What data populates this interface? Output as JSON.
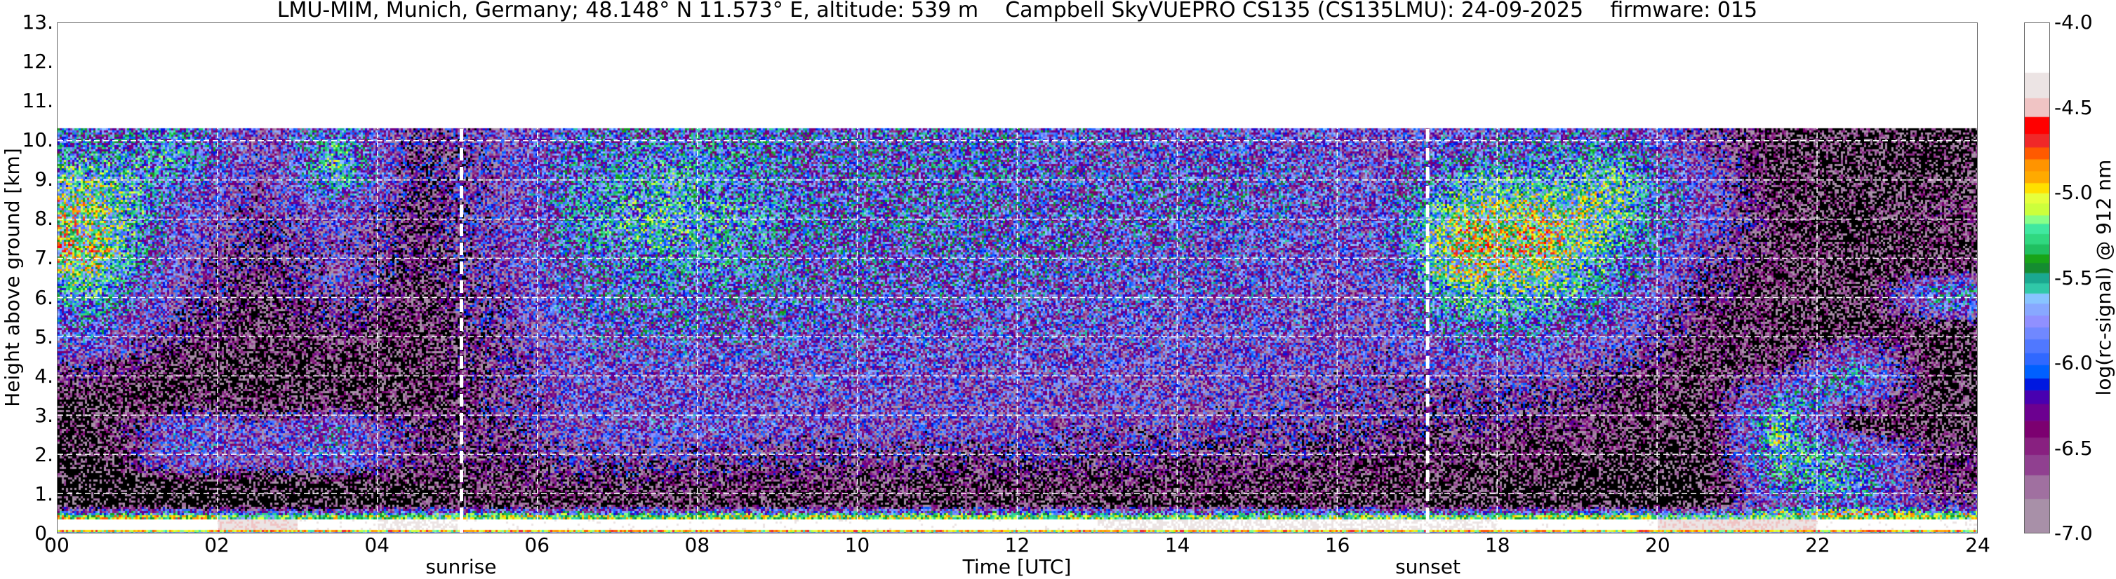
{
  "chart_data": {
    "type": "heatmap",
    "title": "LMU-MIM, Munich, Germany; 48.148° N 11.573° E, altitude: 539 m    Campbell SkyVUEPRO CS135 (CS135LMU): 24-09-2025    firmware: 015",
    "xlabel": "Time [UTC]",
    "ylabel": "Height above ground [km]",
    "xlim": [
      0,
      24
    ],
    "ylim": [
      0,
      13
    ],
    "xticks": [
      "00",
      "02",
      "04",
      "06",
      "08",
      "10",
      "12",
      "14",
      "16",
      "18",
      "20",
      "22",
      "24"
    ],
    "yticks": [
      "0.",
      "1.",
      "2.",
      "3.",
      "4.",
      "5.",
      "6.",
      "7.",
      "8.",
      "9.",
      "10.",
      "11.",
      "12.",
      "13."
    ],
    "grid": true,
    "data_top_km": 10.3,
    "annotations": [
      {
        "label": "sunrise",
        "time_h": 5.05
      },
      {
        "label": "sunset",
        "time_h": 17.13
      }
    ],
    "colorbar": {
      "label": "log(rc-signal) @ 912 nm",
      "ticks": [
        "-4.0",
        "-4.5",
        "-5.0",
        "-5.5",
        "-6.0",
        "-6.5",
        "-7.0"
      ],
      "range": [
        -7.0,
        -4.0
      ],
      "boundaries": [
        -7.0,
        -6.8,
        -6.66,
        -6.54,
        -6.44,
        -6.34,
        -6.24,
        -6.16,
        -6.09,
        -6.01,
        -5.94,
        -5.86,
        -5.79,
        -5.72,
        -5.65,
        -5.59,
        -5.53,
        -5.47,
        -5.41,
        -5.36,
        -5.3,
        -5.24,
        -5.18,
        -5.13,
        -5.06,
        -5.0,
        -4.94,
        -4.87,
        -4.8,
        -4.73,
        -4.65,
        -4.55,
        -4.44,
        -4.29,
        -4.0
      ],
      "colors": [
        "#a890a8",
        "#a070a0",
        "#904090",
        "#882080",
        "#7c0070",
        "#6c0090",
        "#4800b0",
        "#0018e0",
        "#0060ff",
        "#3068ff",
        "#5078ff",
        "#7088ff",
        "#9090ff",
        "#88a8ff",
        "#88c4ff",
        "#30c8a8",
        "#1aa890",
        "#148c30",
        "#18a418",
        "#20c060",
        "#30d880",
        "#40e8a0",
        "#88ff88",
        "#ccff3c",
        "#e6ff3c",
        "#ffe000",
        "#ffaa00",
        "#ff9400",
        "#ff5a00",
        "#f02828",
        "#ff0000",
        "#f0c4c4",
        "#ece4e4",
        "#ffffff"
      ],
      "below_color": "#000000"
    },
    "time_bins_h": [
      0,
      1,
      2,
      3,
      4,
      5,
      6,
      7,
      8,
      9,
      10,
      11,
      12,
      13,
      14,
      15,
      16,
      17,
      18,
      19,
      20,
      21,
      22,
      23
    ],
    "height_bins_km": [
      0,
      0.5,
      1,
      1.5,
      2,
      2.5,
      3,
      3.5,
      4,
      4.5,
      5,
      5.5,
      6,
      6.5,
      7,
      7.5,
      8,
      8.5,
      9,
      9.5,
      10
    ],
    "values_log_signal": [
      [
        -4.1,
        -4.1,
        -4.4,
        -4.2,
        -4.3,
        -4.2,
        -4.2,
        -4.2,
        -4.2,
        -4.2,
        -4.2,
        -4.2,
        -4.2,
        -4.3,
        -4.3,
        -4.3,
        -4.3,
        -4.3,
        -4.2,
        -4.2,
        -4.4,
        -4.4,
        -4.2,
        -4.2
      ],
      [
        -7.3,
        -7.3,
        -7.3,
        -7.3,
        -7.2,
        -7.1,
        -7.1,
        -7.1,
        -7.1,
        -7.1,
        -7.1,
        -7.1,
        -7.1,
        -7.1,
        -7.1,
        -7.1,
        -7.1,
        -7.2,
        -7.2,
        -7.2,
        -7.3,
        -6.2,
        -6.0,
        -6.6
      ],
      [
        -7.3,
        -7.2,
        -7.2,
        -7.2,
        -7.0,
        -6.9,
        -6.8,
        -6.8,
        -6.8,
        -6.9,
        -6.9,
        -6.9,
        -6.9,
        -6.9,
        -6.9,
        -6.9,
        -7.0,
        -7.1,
        -7.1,
        -7.2,
        -7.3,
        -5.8,
        -5.6,
        -6.8
      ],
      [
        -7.2,
        -6.2,
        -6.4,
        -6.1,
        -6.8,
        -6.8,
        -6.6,
        -6.6,
        -6.6,
        -6.7,
        -6.7,
        -6.7,
        -6.7,
        -6.7,
        -6.8,
        -6.8,
        -6.9,
        -6.9,
        -7.0,
        -7.1,
        -7.2,
        -5.6,
        -5.8,
        -6.8
      ],
      [
        -7.1,
        -6.1,
        -6.3,
        -6.0,
        -6.7,
        -6.7,
        -6.4,
        -6.4,
        -6.4,
        -6.5,
        -6.5,
        -6.5,
        -6.5,
        -6.5,
        -6.6,
        -6.6,
        -6.7,
        -6.8,
        -6.9,
        -7.0,
        -7.2,
        -5.5,
        -6.0,
        -6.8
      ],
      [
        -7.0,
        -6.1,
        -6.4,
        -6.0,
        -6.7,
        -6.7,
        -6.2,
        -6.1,
        -6.2,
        -6.3,
        -6.3,
        -6.3,
        -6.4,
        -6.4,
        -6.4,
        -6.5,
        -6.6,
        -6.7,
        -6.8,
        -6.9,
        -7.1,
        -5.5,
        -7.0,
        -7.1
      ],
      [
        -7.2,
        -6.8,
        -6.9,
        -6.8,
        -7.0,
        -6.6,
        -6.3,
        -6.2,
        -6.2,
        -6.3,
        -6.3,
        -6.3,
        -6.3,
        -6.3,
        -6.4,
        -6.4,
        -6.5,
        -6.6,
        -6.6,
        -6.9,
        -7.1,
        -5.6,
        -6.5,
        -7.1
      ],
      [
        -6.9,
        -7.1,
        -7.1,
        -7.1,
        -7.0,
        -6.6,
        -6.2,
        -6.3,
        -6.2,
        -6.2,
        -6.2,
        -6.3,
        -6.3,
        -6.3,
        -6.3,
        -6.4,
        -6.5,
        -6.5,
        -6.5,
        -6.8,
        -7.0,
        -6.2,
        -5.8,
        -7.1
      ],
      [
        -6.6,
        -7.0,
        -7.1,
        -7.0,
        -7.0,
        -6.6,
        -6.2,
        -6.2,
        -6.2,
        -6.2,
        -6.2,
        -6.2,
        -6.2,
        -6.3,
        -6.3,
        -6.3,
        -6.4,
        -6.3,
        -6.3,
        -6.6,
        -7.0,
        -6.8,
        -5.8,
        -7.1
      ],
      [
        -6.2,
        -6.8,
        -7.0,
        -6.9,
        -7.0,
        -6.6,
        -6.1,
        -6.1,
        -6.1,
        -6.1,
        -6.1,
        -6.2,
        -6.2,
        -6.2,
        -6.2,
        -6.3,
        -6.4,
        -6.1,
        -6.1,
        -6.4,
        -6.9,
        -7.0,
        -6.3,
        -7.1
      ],
      [
        -6.0,
        -6.6,
        -6.9,
        -6.7,
        -7.0,
        -6.5,
        -6.1,
        -6.0,
        -6.0,
        -6.1,
        -6.1,
        -6.1,
        -6.1,
        -6.2,
        -6.2,
        -6.2,
        -6.3,
        -5.9,
        -5.9,
        -6.2,
        -6.8,
        -7.0,
        -7.1,
        -7.0
      ],
      [
        -5.8,
        -6.5,
        -6.9,
        -6.6,
        -6.9,
        -6.5,
        -6.0,
        -5.9,
        -6.0,
        -6.0,
        -6.0,
        -6.1,
        -6.1,
        -6.1,
        -6.2,
        -6.2,
        -6.3,
        -5.7,
        -5.7,
        -6.0,
        -6.7,
        -7.0,
        -7.1,
        -6.0
      ],
      [
        -5.6,
        -6.4,
        -6.8,
        -6.4,
        -6.9,
        -6.5,
        -6.0,
        -5.9,
        -5.9,
        -6.0,
        -6.0,
        -6.0,
        -6.1,
        -6.1,
        -6.1,
        -6.2,
        -6.3,
        -5.5,
        -5.5,
        -5.9,
        -6.6,
        -7.0,
        -7.1,
        -5.8
      ],
      [
        -5.4,
        -6.3,
        -6.8,
        -6.3,
        -6.8,
        -6.4,
        -6.0,
        -5.8,
        -5.8,
        -6.0,
        -6.0,
        -6.0,
        -6.0,
        -6.1,
        -6.1,
        -6.2,
        -6.2,
        -5.3,
        -5.3,
        -5.8,
        -6.5,
        -7.0,
        -7.1,
        -6.9
      ],
      [
        -5.2,
        -6.3,
        -6.7,
        -6.4,
        -6.8,
        -6.4,
        -5.9,
        -5.7,
        -5.8,
        -6.0,
        -6.0,
        -6.0,
        -6.0,
        -6.1,
        -6.1,
        -6.2,
        -6.2,
        -5.2,
        -5.2,
        -5.7,
        -6.4,
        -6.9,
        -7.1,
        -7.0
      ],
      [
        -5.3,
        -6.2,
        -6.6,
        -6.3,
        -6.8,
        -6.4,
        -5.8,
        -5.6,
        -5.7,
        -5.9,
        -5.9,
        -6.0,
        -6.0,
        -6.0,
        -6.1,
        -6.1,
        -6.2,
        -5.2,
        -5.2,
        -5.6,
        -6.3,
        -6.9,
        -7.1,
        -7.0
      ],
      [
        -5.3,
        -6.1,
        -6.6,
        -6.2,
        -6.8,
        -6.4,
        -5.8,
        -5.6,
        -5.7,
        -5.9,
        -5.9,
        -6.0,
        -6.0,
        -6.0,
        -6.0,
        -6.1,
        -6.2,
        -5.4,
        -5.3,
        -5.5,
        -6.2,
        -6.9,
        -7.1,
        -6.8
      ],
      [
        -5.4,
        -6.0,
        -6.5,
        -5.8,
        -6.7,
        -6.4,
        -5.8,
        -5.7,
        -5.8,
        -6.0,
        -5.9,
        -5.9,
        -6.0,
        -6.0,
        -6.0,
        -6.1,
        -6.2,
        -5.6,
        -5.5,
        -5.5,
        -6.2,
        -6.9,
        -7.1,
        -7.0
      ],
      [
        -5.6,
        -5.8,
        -6.4,
        -5.5,
        -6.7,
        -6.4,
        -5.9,
        -5.7,
        -5.8,
        -6.0,
        -5.9,
        -5.9,
        -6.0,
        -6.1,
        -6.0,
        -6.1,
        -6.2,
        -5.8,
        -5.7,
        -5.6,
        -6.3,
        -7.0,
        -7.1,
        -7.1
      ],
      [
        -5.8,
        -5.7,
        -6.4,
        -5.6,
        -6.7,
        -6.4,
        -5.9,
        -5.8,
        -5.8,
        -6.0,
        -6.0,
        -5.9,
        -6.1,
        -6.1,
        -6.1,
        -6.1,
        -6.3,
        -6.0,
        -5.9,
        -5.8,
        -6.4,
        -7.0,
        -7.1,
        -7.1
      ],
      [
        -6.0,
        -5.8,
        -6.4,
        -5.9,
        -6.6,
        -6.4,
        -6.0,
        -5.9,
        -5.8,
        -6.0,
        -6.0,
        -5.9,
        -6.1,
        -6.1,
        -6.1,
        -6.2,
        -6.3,
        -6.2,
        -6.0,
        -6.0,
        -6.5,
        -7.0,
        -7.1,
        -7.1
      ]
    ]
  }
}
